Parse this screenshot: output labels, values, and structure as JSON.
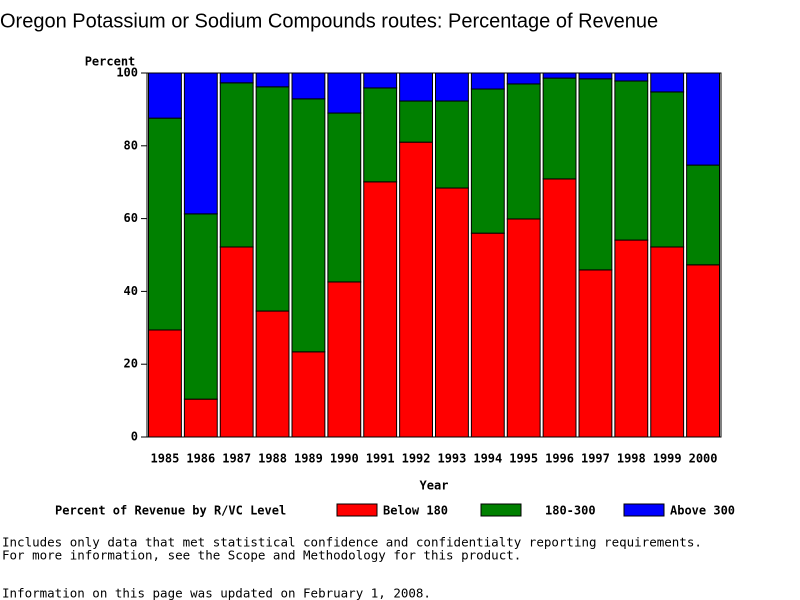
{
  "chart_data": {
    "type": "stacked_bar",
    "title": "Oregon Potassium or Sodium Compounds routes: Percentage of Revenue",
    "y_label": "Percent",
    "x_label": "Year",
    "legend_title": "Percent of Revenue by R/VC Level",
    "categories": [
      "1985",
      "1986",
      "1987",
      "1988",
      "1989",
      "1990",
      "1991",
      "1992",
      "1993",
      "1994",
      "1995",
      "1996",
      "1997",
      "1998",
      "1999",
      "2000"
    ],
    "series": [
      {
        "name": "Below 180",
        "color": "#ff0000",
        "values": [
          29.4,
          10.4,
          52.2,
          34.6,
          23.4,
          42.6,
          70.1,
          81.0,
          68.4,
          56.0,
          59.9,
          70.9,
          45.9,
          54.1,
          52.2,
          47.3
        ]
      },
      {
        "name": "180-300",
        "color": "#008000",
        "values": [
          58.2,
          50.9,
          45.1,
          61.6,
          69.5,
          46.4,
          25.8,
          11.3,
          23.9,
          39.6,
          37.1,
          27.7,
          52.5,
          43.7,
          42.6,
          27.4
        ]
      },
      {
        "name": "Above 300",
        "color": "#0000ff",
        "values": [
          12.4,
          38.7,
          2.7,
          3.8,
          7.1,
          11.0,
          4.1,
          7.7,
          7.7,
          4.4,
          3.0,
          1.4,
          1.6,
          2.2,
          5.2,
          25.3
        ]
      }
    ],
    "ylim": [
      0,
      100
    ],
    "yticks": [
      0,
      20,
      40,
      60,
      80,
      100
    ],
    "notes": [
      "Includes only data that met statistical confidence and confidentialty reporting requirements.",
      "For more information, see the Scope and Methodology for this product.",
      "Information on this page was updated on February 1, 2008."
    ]
  }
}
